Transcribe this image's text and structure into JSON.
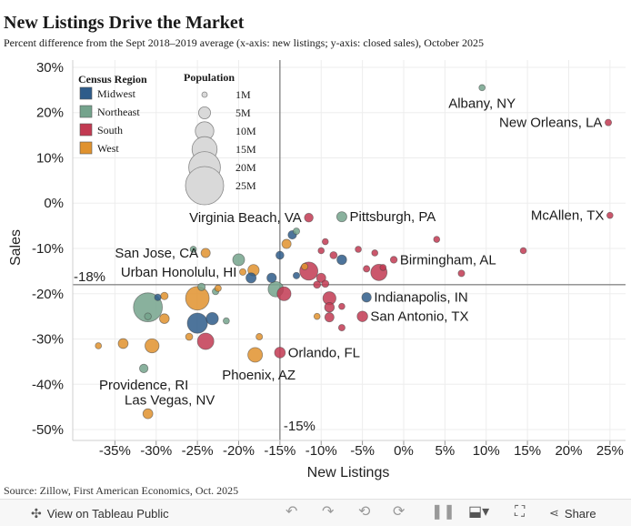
{
  "title": "New Listings Drive the Market",
  "subtitle": "Percent difference from the Sept 2018–2019 average (x-axis: new listings; y-axis: closed sales), October 2025",
  "source": "Source: Zillow, First American Economics, Oct. 2025",
  "toolbar": {
    "view_label": "View on Tableau Public",
    "share_label": "Share"
  },
  "chart_data": {
    "type": "scatter",
    "xlabel": "New Listings",
    "ylabel": "Sales",
    "xlim": [
      -40,
      27
    ],
    "ylim": [
      -52,
      32
    ],
    "x_ticks": [
      -35,
      -30,
      -25,
      -20,
      -15,
      -10,
      -5,
      0,
      5,
      10,
      15,
      20,
      25
    ],
    "x_tick_labels": [
      "-35%",
      "-30%",
      "-25%",
      "-20%",
      "-15%",
      "-10%",
      "-5%",
      "0%",
      "5%",
      "10%",
      "15%",
      "20%",
      "25%"
    ],
    "y_ticks": [
      30,
      20,
      10,
      0,
      -10,
      -20,
      -30,
      -40,
      -50
    ],
    "y_tick_labels": [
      "30%",
      "20%",
      "10%",
      "0%",
      "-10%",
      "-20%",
      "-30%",
      "-40%",
      "-50%"
    ],
    "reference_lines": {
      "x": -15,
      "x_label": "-15%",
      "y": -18,
      "y_label": "-18%"
    },
    "legend": {
      "region_title": "Census Region",
      "regions": [
        {
          "name": "Midwest",
          "color": "#2e5c8a"
        },
        {
          "name": "Northeast",
          "color": "#74a38c"
        },
        {
          "name": "South",
          "color": "#c23a52"
        },
        {
          "name": "West",
          "color": "#e0922e"
        }
      ],
      "size_title": "Population",
      "sizes": [
        {
          "label": "1M",
          "pop": 1
        },
        {
          "label": "5M",
          "pop": 5
        },
        {
          "label": "10M",
          "pop": 10
        },
        {
          "label": "15M",
          "pop": 15
        },
        {
          "label": "20M",
          "pop": 20
        },
        {
          "label": "25M",
          "pop": 25
        }
      ]
    },
    "points": [
      {
        "label": "Albany, NY",
        "x": 9.5,
        "y": 25.5,
        "region": "Northeast",
        "pop": 0.9
      },
      {
        "label": "New Orleans, LA",
        "x": 24.8,
        "y": 17.8,
        "region": "South",
        "pop": 1.0
      },
      {
        "label": "McAllen, TX",
        "x": 25,
        "y": -2.7,
        "region": "South",
        "pop": 0.9
      },
      {
        "label": "Pittsburgh, PA",
        "x": -7.5,
        "y": -3,
        "region": "Northeast",
        "pop": 2.4
      },
      {
        "label": "Virginia Beach, VA",
        "x": -11.5,
        "y": -3.2,
        "region": "South",
        "pop": 1.8
      },
      {
        "label": "San Jose, CA",
        "x": -24,
        "y": -11,
        "region": "West",
        "pop": 2.0
      },
      {
        "label": "Birmingham, AL",
        "x": -1.2,
        "y": -12.5,
        "region": "South",
        "pop": 1.1
      },
      {
        "label": "Urban Honolulu, HI",
        "x": -19.5,
        "y": -15.2,
        "region": "West",
        "pop": 1.0
      },
      {
        "label": "Indianapolis, IN",
        "x": -4.5,
        "y": -20.8,
        "region": "Midwest",
        "pop": 2.1
      },
      {
        "label": "San Antonio, TX",
        "x": -5,
        "y": -25,
        "region": "South",
        "pop": 2.6
      },
      {
        "label": "Orlando, FL",
        "x": -15,
        "y": -33,
        "region": "South",
        "pop": 2.7
      },
      {
        "label": "Phoenix, AZ",
        "x": -18,
        "y": -33.5,
        "region": "West",
        "pop": 5.0
      },
      {
        "label": "Providence, RI",
        "x": -31.5,
        "y": -36.5,
        "region": "Northeast",
        "pop": 1.7
      },
      {
        "label": "Las Vegas, NV",
        "x": -31,
        "y": -46.5,
        "region": "West",
        "pop": 2.3
      },
      {
        "label": "",
        "x": -31,
        "y": -23,
        "region": "Northeast",
        "pop": 19.5
      },
      {
        "label": "",
        "x": -25,
        "y": -21,
        "region": "West",
        "pop": 13
      },
      {
        "label": "",
        "x": -25,
        "y": -26.5,
        "region": "Midwest",
        "pop": 9.5
      },
      {
        "label": "",
        "x": -24,
        "y": -30.5,
        "region": "South",
        "pop": 6.3
      },
      {
        "label": "",
        "x": -23.2,
        "y": -25.5,
        "region": "Midwest",
        "pop": 3.5
      },
      {
        "label": "",
        "x": -30.5,
        "y": -31.5,
        "region": "West",
        "pop": 4.6
      },
      {
        "label": "",
        "x": -34,
        "y": -31,
        "region": "West",
        "pop": 2.3
      },
      {
        "label": "",
        "x": -37,
        "y": -31.5,
        "region": "West",
        "pop": 0.9
      },
      {
        "label": "",
        "x": -29,
        "y": -25.5,
        "region": "West",
        "pop": 2.2
      },
      {
        "label": "",
        "x": -31,
        "y": -25,
        "region": "Northeast",
        "pop": 1.1
      },
      {
        "label": "",
        "x": -29.8,
        "y": -20.8,
        "region": "Midwest",
        "pop": 1.0
      },
      {
        "label": "",
        "x": -29,
        "y": -20.5,
        "region": "West",
        "pop": 1.3
      },
      {
        "label": "",
        "x": -26,
        "y": -29.5,
        "region": "West",
        "pop": 1.2
      },
      {
        "label": "",
        "x": -24.5,
        "y": -18.5,
        "region": "Northeast",
        "pop": 1.3
      },
      {
        "label": "",
        "x": -22.8,
        "y": -19.5,
        "region": "Northeast",
        "pop": 1.0
      },
      {
        "label": "",
        "x": -22.5,
        "y": -18.8,
        "region": "West",
        "pop": 1.0
      },
      {
        "label": "",
        "x": -21.5,
        "y": -26,
        "region": "Northeast",
        "pop": 0.9
      },
      {
        "label": "",
        "x": -20,
        "y": -12.5,
        "region": "Northeast",
        "pop": 3.3
      },
      {
        "label": "",
        "x": -18.2,
        "y": -14.8,
        "region": "West",
        "pop": 3.0
      },
      {
        "label": "",
        "x": -18.5,
        "y": -16.5,
        "region": "Midwest",
        "pop": 2.4
      },
      {
        "label": "",
        "x": -17.5,
        "y": -29.5,
        "region": "West",
        "pop": 1.0
      },
      {
        "label": "",
        "x": -25.5,
        "y": -10.2,
        "region": "Northeast",
        "pop": 0.9
      },
      {
        "label": "",
        "x": -16,
        "y": -16.5,
        "region": "Midwest",
        "pop": 2.1
      },
      {
        "label": "",
        "x": -15.5,
        "y": -19,
        "region": "Northeast",
        "pop": 5.5
      },
      {
        "label": "",
        "x": -14.5,
        "y": -20,
        "region": "South",
        "pop": 4.5
      },
      {
        "label": "",
        "x": -15,
        "y": -11.5,
        "region": "Midwest",
        "pop": 1.5
      },
      {
        "label": "",
        "x": -14.2,
        "y": -9,
        "region": "West",
        "pop": 2.0
      },
      {
        "label": "",
        "x": -13.5,
        "y": -7,
        "region": "Midwest",
        "pop": 1.7
      },
      {
        "label": "",
        "x": -13,
        "y": -6.2,
        "region": "Northeast",
        "pop": 1.0
      },
      {
        "label": "",
        "x": -13,
        "y": -16,
        "region": "Midwest",
        "pop": 1.0
      },
      {
        "label": "",
        "x": -11.5,
        "y": -15,
        "region": "South",
        "pop": 7.7
      },
      {
        "label": "",
        "x": -10,
        "y": -16.5,
        "region": "South",
        "pop": 2.0
      },
      {
        "label": "",
        "x": -10.5,
        "y": -18,
        "region": "South",
        "pop": 1.2
      },
      {
        "label": "",
        "x": -9.5,
        "y": -17.8,
        "region": "South",
        "pop": 1.2
      },
      {
        "label": "",
        "x": -12,
        "y": -14,
        "region": "West",
        "pop": 1.0
      },
      {
        "label": "",
        "x": -10,
        "y": -10.5,
        "region": "South",
        "pop": 0.9
      },
      {
        "label": "",
        "x": -9.5,
        "y": -8.5,
        "region": "South",
        "pop": 0.9
      },
      {
        "label": "",
        "x": -9,
        "y": -21,
        "region": "South",
        "pop": 4.0
      },
      {
        "label": "",
        "x": -9,
        "y": -23,
        "region": "South",
        "pop": 2.2
      },
      {
        "label": "",
        "x": -9,
        "y": -25.2,
        "region": "South",
        "pop": 2.0
      },
      {
        "label": "",
        "x": -7.5,
        "y": -22.8,
        "region": "South",
        "pop": 0.9
      },
      {
        "label": "",
        "x": -10.5,
        "y": -25,
        "region": "West",
        "pop": 0.9
      },
      {
        "label": "",
        "x": -7.5,
        "y": -27.5,
        "region": "South",
        "pop": 1.0
      },
      {
        "label": "",
        "x": -8.5,
        "y": -11.5,
        "region": "South",
        "pop": 1.2
      },
      {
        "label": "",
        "x": -7.5,
        "y": -12.5,
        "region": "Midwest",
        "pop": 2.2
      },
      {
        "label": "",
        "x": -5.5,
        "y": -10.2,
        "region": "South",
        "pop": 0.9
      },
      {
        "label": "",
        "x": -3.5,
        "y": -11,
        "region": "South",
        "pop": 0.9
      },
      {
        "label": "",
        "x": -3,
        "y": -15.3,
        "region": "South",
        "pop": 6.2
      },
      {
        "label": "",
        "x": -4.5,
        "y": -14.5,
        "region": "South",
        "pop": 1.0
      },
      {
        "label": "",
        "x": -2.5,
        "y": -14.2,
        "region": "South",
        "pop": 0.9
      },
      {
        "label": "",
        "x": 4,
        "y": -8,
        "region": "South",
        "pop": 0.9
      },
      {
        "label": "",
        "x": 7,
        "y": -15.5,
        "region": "South",
        "pop": 1.0
      },
      {
        "label": "",
        "x": 14.5,
        "y": -10.5,
        "region": "South",
        "pop": 0.9
      }
    ]
  }
}
